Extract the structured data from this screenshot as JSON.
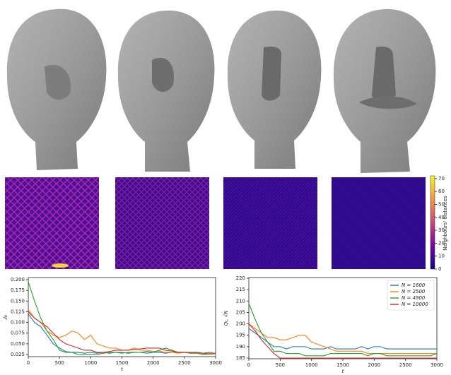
{
  "colorbar": {
    "label": "Neighbours' distances",
    "lim": [
      0,
      71
    ],
    "ticks": [
      0,
      10,
      20,
      30,
      40,
      50,
      60,
      70
    ]
  },
  "chart_data": [
    {
      "type": "line",
      "xlabel": "t",
      "ylabel": "Aₜ",
      "x": [
        0,
        100,
        200,
        300,
        400,
        500,
        600,
        700,
        800,
        900,
        1000,
        1100,
        1200,
        1300,
        1400,
        1500,
        1600,
        1700,
        1800,
        1900,
        2000,
        2100,
        2200,
        2300,
        2400,
        2500,
        2600,
        2700,
        2800,
        2900,
        3000
      ],
      "xlim": [
        0,
        3000
      ],
      "xticks": [
        0,
        500,
        1000,
        1500,
        2000,
        2500,
        3000
      ],
      "ylim": [
        0.02,
        0.205
      ],
      "yticks": [
        0.025,
        {
          "value": 0.05,
          "label": "0.050"
        },
        0.075,
        {
          "value": 0.1,
          "label": "0.100"
        },
        0.125,
        {
          "value": 0.15,
          "label": "0.150"
        },
        0.175,
        {
          "value": 0.2,
          "label": "0.200"
        }
      ],
      "series": [
        {
          "color": "#1f77b4",
          "values": [
            0.12,
            0.1,
            0.09,
            0.07,
            0.05,
            0.04,
            0.032,
            0.03,
            0.03,
            0.028,
            0.03,
            0.028,
            0.03,
            0.028,
            0.03,
            0.03,
            0.028,
            0.03,
            0.03,
            0.032,
            0.03,
            0.03,
            0.028,
            0.03,
            0.03,
            0.03,
            0.028,
            0.03,
            0.028,
            0.03,
            0.027
          ]
        },
        {
          "color": "#ff7f0e",
          "values": [
            0.13,
            0.11,
            0.1,
            0.08,
            0.07,
            0.065,
            0.07,
            0.08,
            0.075,
            0.06,
            0.07,
            0.05,
            0.045,
            0.04,
            0.04,
            0.035,
            0.035,
            0.04,
            0.035,
            0.035,
            0.032,
            0.033,
            0.03,
            0.03,
            0.028,
            0.03,
            0.028,
            0.03,
            0.025,
            0.03,
            0.027
          ]
        },
        {
          "color": "#2ca02c",
          "values": [
            0.195,
            0.15,
            0.11,
            0.08,
            0.06,
            0.035,
            0.03,
            0.03,
            0.025,
            0.025,
            0.025,
            0.025,
            0.028,
            0.03,
            0.03,
            0.028,
            0.03,
            0.03,
            0.03,
            0.028,
            0.03,
            0.035,
            0.04,
            0.035,
            0.03,
            0.03,
            0.028,
            0.028,
            0.025,
            0.025,
            0.027
          ]
        },
        {
          "color": "#d62728",
          "values": [
            0.125,
            0.11,
            0.1,
            0.09,
            0.075,
            0.06,
            0.05,
            0.045,
            0.04,
            0.035,
            0.035,
            0.03,
            0.03,
            0.032,
            0.035,
            0.035,
            0.035,
            0.037,
            0.038,
            0.04,
            0.04,
            0.04,
            0.035,
            0.033,
            0.03,
            0.03,
            0.03,
            0.03,
            0.028,
            0.028,
            0.028
          ]
        }
      ]
    },
    {
      "type": "line",
      "xlabel": "t",
      "ylabel": "Qₜ, √N",
      "legend": "upper right",
      "x": [
        0,
        100,
        200,
        300,
        400,
        500,
        600,
        700,
        800,
        900,
        1000,
        1100,
        1200,
        1300,
        1400,
        1500,
        1600,
        1700,
        1800,
        1900,
        2000,
        2100,
        2200,
        2300,
        2400,
        2500,
        2600,
        2700,
        2800,
        2900,
        3000
      ],
      "xlim": [
        0,
        3000
      ],
      "xticks": [
        0,
        500,
        1000,
        1500,
        2000,
        2500,
        3000
      ],
      "ylim": [
        184.7,
        220.3
      ],
      "yticks": [
        185,
        190,
        195,
        200,
        205,
        210,
        215,
        220
      ],
      "series": [
        {
          "name": "N = 1600",
          "color": "#1f77b4",
          "values": [
            198,
            196,
            194,
            192,
            190,
            190,
            189,
            190,
            190,
            190,
            189,
            189,
            189,
            190,
            189,
            189,
            189,
            189,
            190,
            189,
            190,
            190,
            189,
            189,
            189,
            189,
            189,
            189,
            189,
            189,
            189
          ]
        },
        {
          "name": "N = 2500",
          "color": "#ff7f0e",
          "values": [
            200,
            198,
            196,
            194,
            194,
            193,
            193,
            194,
            195,
            195,
            192,
            191,
            190,
            189,
            188,
            188,
            188,
            188,
            188,
            187,
            187,
            187,
            187,
            187,
            187,
            187,
            187,
            187,
            187,
            187,
            187
          ]
        },
        {
          "name": "N = 4900",
          "color": "#2ca02c",
          "values": [
            209,
            202,
            196,
            192,
            188,
            188,
            187,
            187,
            187,
            186,
            186,
            186,
            186,
            187,
            187,
            187,
            187,
            187,
            187,
            186,
            187,
            187,
            186,
            186,
            186,
            186,
            186,
            186,
            186,
            186,
            187
          ]
        },
        {
          "name": "N = 10000",
          "color": "#d62728",
          "values": [
            200,
            197,
            193,
            190,
            187,
            185,
            185,
            185,
            185,
            185,
            185,
            185,
            185,
            185,
            185,
            185,
            185,
            185,
            185,
            185,
            185,
            185,
            185,
            185,
            185,
            185,
            185,
            185,
            185,
            185,
            185
          ]
        }
      ]
    }
  ]
}
